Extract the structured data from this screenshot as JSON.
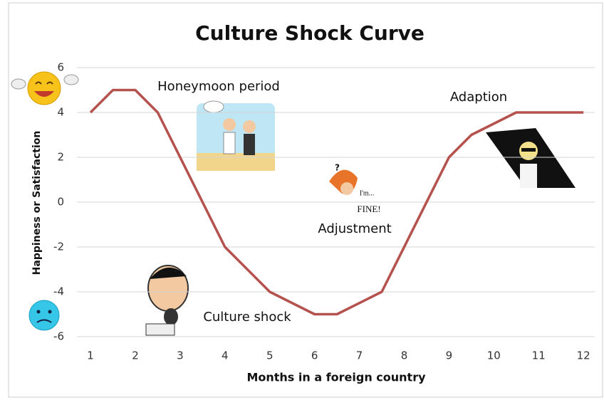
{
  "chart_data": {
    "type": "line",
    "title": "Culture Shock Curve",
    "x_label": "Months in a foreign country",
    "y_label": "Happiness or Satisfaction",
    "x": [
      1,
      1.5,
      2,
      2.5,
      4,
      5,
      6,
      6.5,
      7.5,
      9,
      9.5,
      10.5,
      12
    ],
    "values": [
      4,
      5,
      5,
      4,
      -2,
      -4,
      -5,
      -5,
      -4,
      2,
      3,
      4,
      4
    ],
    "color": "#b5524e",
    "xlim": [
      0.5,
      12.3
    ],
    "xticks": [
      1,
      2,
      3,
      4,
      5,
      6,
      7,
      8,
      9,
      10,
      11,
      12
    ],
    "ylim": [
      -6,
      6
    ],
    "yticks": [
      -6,
      -4,
      -2,
      0,
      2,
      4,
      6
    ],
    "grid": true,
    "annotations": [
      "Honeymoon period",
      "Culture shock",
      "Adjustment",
      "Adaption",
      "I'm...",
      "FINE!"
    ]
  }
}
